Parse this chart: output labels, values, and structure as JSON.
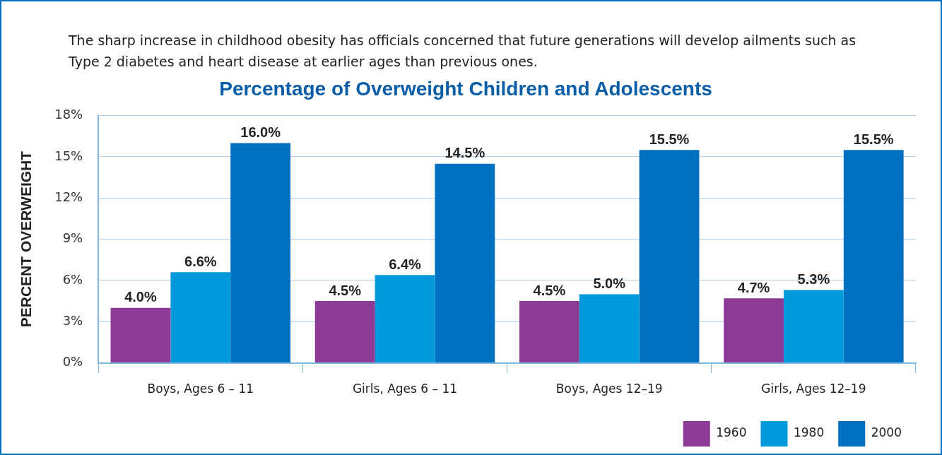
{
  "chart_data": {
    "type": "bar",
    "title": "Percentage of Overweight Children and Adolescents",
    "subtitle": "The sharp increase in childhood obesity has officials concerned that future generations will develop ailments such as Type 2 diabetes and heart disease at earlier ages than previous ones.",
    "ylabel": "PERCENT OVERWEIGHT",
    "categories": [
      "Boys, Ages 6 – 11",
      "Girls, Ages 6 – 11",
      "Boys, Ages 12–19",
      "Girls, Ages 12–19"
    ],
    "series": [
      {
        "name": "1960",
        "color": "#8b3a96",
        "values": [
          4.0,
          4.5,
          4.5,
          4.7
        ],
        "value_labels": [
          "4.0%",
          "4.5%",
          "4.5%",
          "4.7%"
        ]
      },
      {
        "name": "1980",
        "color": "#0099dc",
        "values": [
          6.6,
          6.4,
          5.0,
          5.3
        ],
        "value_labels": [
          "6.6%",
          "6.4%",
          "5.0%",
          "5.3%"
        ]
      },
      {
        "name": "2000",
        "color": "#0070c0",
        "values": [
          16.0,
          14.5,
          15.5,
          15.5
        ],
        "value_labels": [
          "16.0%",
          "14.5%",
          "15.5%",
          "15.5%"
        ]
      }
    ],
    "ylim": [
      0,
      18
    ],
    "yticks": [
      {
        "value": 0,
        "label": "0%"
      },
      {
        "value": 3,
        "label": "3%"
      },
      {
        "value": 6,
        "label": "6%"
      },
      {
        "value": 9,
        "label": "9%"
      },
      {
        "value": 12,
        "label": "12%"
      },
      {
        "value": 15,
        "label": "15%"
      },
      {
        "value": 18,
        "label": "18%"
      }
    ],
    "grid": "y",
    "legend": "bottom right"
  }
}
